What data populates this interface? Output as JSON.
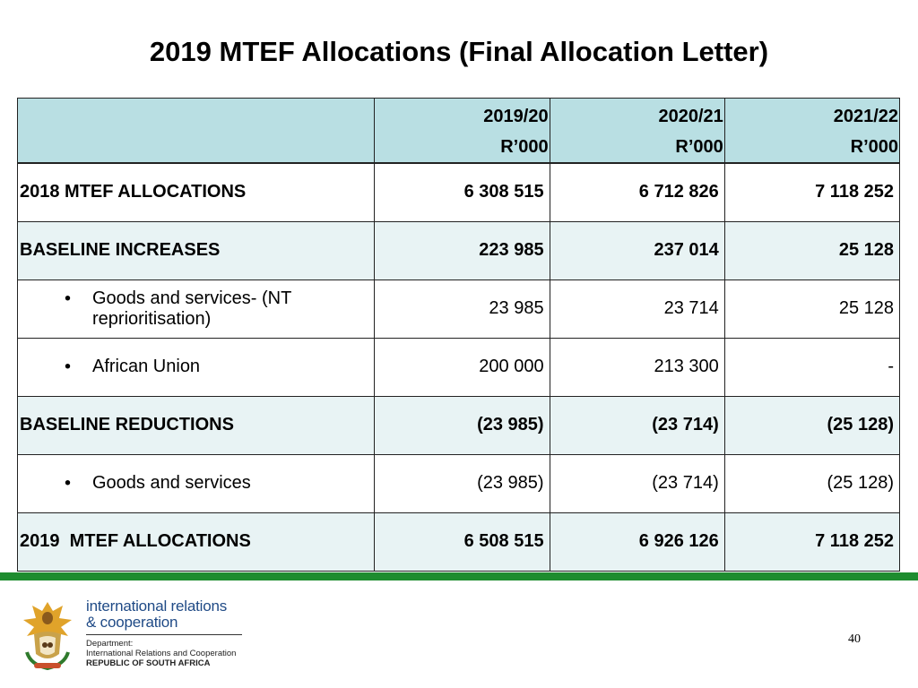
{
  "slide": {
    "title": "2019 MTEF Allocations (Final Allocation Letter)",
    "page_number": "40"
  },
  "table": {
    "columns": [
      {
        "year": "2019/20",
        "unit": "R’000"
      },
      {
        "year": "2020/21",
        "unit": "R’000"
      },
      {
        "year": "2021/22",
        "unit": "R’000"
      }
    ],
    "rows": [
      {
        "label": "2018 MTEF ALLOCATIONS",
        "values": [
          "6 308 515",
          "6 712 826",
          "7 118 252"
        ]
      },
      {
        "label": "BASELINE INCREASES",
        "values": [
          "223 985",
          "237 014",
          "25 128"
        ]
      },
      {
        "bullet": "•",
        "label_line1": "Goods and services- (NT",
        "label_line2": "reprioritisation)",
        "values": [
          "23 985",
          "23 714",
          "25 128"
        ]
      },
      {
        "bullet": "•",
        "label": "African Union",
        "values": [
          "200 000",
          "213 300",
          "-"
        ]
      },
      {
        "label": "BASELINE REDUCTIONS",
        "values": [
          "(23 985)",
          "(23 714)",
          "(25 128)"
        ]
      },
      {
        "bullet": "•",
        "label": "Goods and services",
        "values": [
          "(23 985)",
          "(23 714)",
          "(25 128)"
        ]
      },
      {
        "label": "2019  MTEF ALLOCATIONS",
        "values": [
          "6 508 515",
          "6 926 126",
          "7 118 252"
        ]
      }
    ]
  },
  "footer": {
    "org_line1": "international relations",
    "org_line2": "& cooperation",
    "dept_label": "Department:",
    "dept_name": "International Relations and Cooperation",
    "country": "REPUBLIC OF SOUTH AFRICA",
    "colors": {
      "brand_blue": "#1f4a86",
      "bar_green": "#1e8c2f",
      "header_fill": "#b9dfe3",
      "row_fill": "#e8f3f4"
    },
    "emblem_icon": "coat-of-arms-icon"
  }
}
